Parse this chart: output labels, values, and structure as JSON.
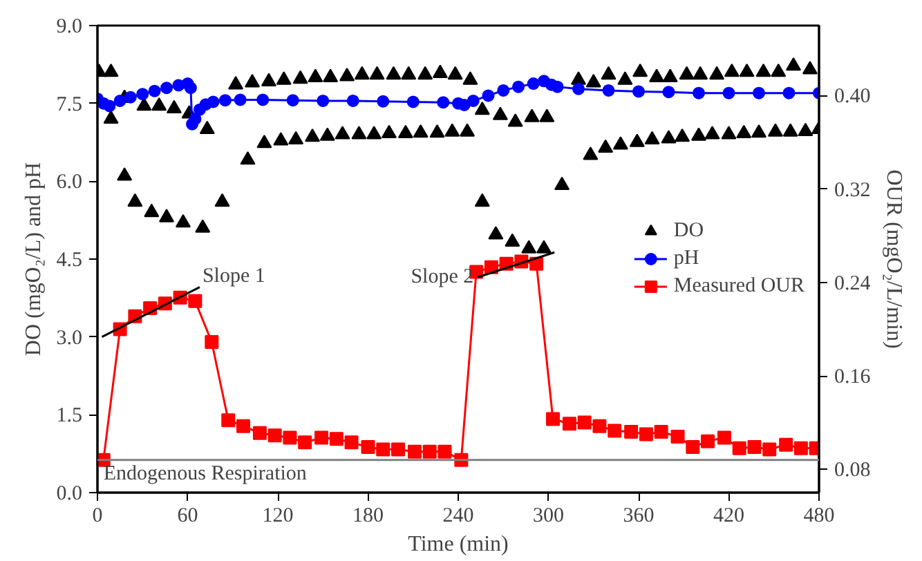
{
  "chart_data": {
    "type": "line",
    "xlabel": "Time (min)",
    "ylabel": "DO (mgO₂/L) and pH",
    "y2label": "OUR (mgO₂/L/min)",
    "xlim": [
      0,
      480
    ],
    "xticks": [
      0,
      60,
      120,
      180,
      240,
      300,
      360,
      420,
      480
    ],
    "ylim": [
      0,
      9
    ],
    "yticks": [
      {
        "value": 0,
        "label": "0.0"
      },
      {
        "value": 1.5,
        "label": "1.5"
      },
      {
        "value": 3,
        "label": "3.0"
      },
      {
        "value": 4.5,
        "label": "4.5"
      },
      {
        "value": 6,
        "label": "6.0"
      },
      {
        "value": 7.5,
        "label": "7.5"
      },
      {
        "value": 9,
        "label": "9.0"
      }
    ],
    "y2lim": [
      0.06,
      0.46
    ],
    "y2ticks": [
      0.08,
      0.16,
      0.24,
      0.32,
      {
        "value": 0.4,
        "label": "0.40"
      }
    ],
    "legend": "right",
    "grid": false,
    "series": [
      {
        "name": "DO",
        "type": "scatter",
        "marker": "triangle",
        "color": "#000000",
        "x": [
          1,
          9,
          9,
          18,
          18,
          25,
          31,
          36,
          41,
          46,
          51,
          57,
          61,
          70,
          73,
          83,
          92,
          100,
          103,
          111,
          114,
          122,
          124,
          132,
          135,
          143,
          145,
          153,
          155,
          163,
          166,
          174,
          176,
          184,
          186,
          194,
          197,
          205,
          207,
          215,
          218,
          226,
          228,
          236,
          238,
          246,
          248,
          256,
          256,
          265,
          268,
          276,
          278,
          287,
          289,
          297,
          299,
          309,
          320,
          328,
          330,
          338,
          340,
          348,
          351,
          359,
          361,
          369,
          372,
          380,
          381,
          389,
          392,
          400,
          401,
          409,
          412,
          420,
          422,
          430,
          432,
          440,
          443,
          451,
          453,
          461,
          463,
          471,
          474,
          480
        ],
        "values": [
          8.1,
          7.2,
          8.1,
          6.1,
          7.6,
          5.6,
          7.45,
          5.4,
          7.45,
          5.3,
          7.4,
          5.2,
          7.3,
          5.1,
          7.0,
          5.6,
          7.86,
          6.41,
          7.9,
          6.73,
          7.92,
          6.78,
          7.95,
          6.8,
          7.97,
          6.85,
          8.0,
          6.87,
          8.0,
          6.9,
          8.02,
          6.9,
          8.05,
          6.9,
          8.05,
          6.92,
          8.05,
          6.92,
          8.05,
          6.93,
          8.05,
          6.93,
          8.08,
          6.95,
          8.05,
          6.95,
          7.95,
          5.6,
          7.37,
          4.97,
          7.27,
          4.83,
          7.14,
          4.7,
          7.23,
          4.7,
          7.23,
          5.92,
          7.95,
          6.5,
          7.9,
          6.64,
          8.05,
          6.7,
          7.95,
          6.75,
          8.1,
          6.8,
          8.0,
          6.82,
          8.0,
          6.85,
          8.05,
          6.87,
          8.05,
          6.9,
          8.05,
          6.9,
          8.1,
          6.92,
          8.1,
          6.93,
          8.1,
          6.95,
          8.1,
          6.95,
          8.22,
          6.96,
          8.15,
          7.0
        ]
      },
      {
        "name": "pH",
        "marker": "circle",
        "color": "#0000ff",
        "x": [
          0,
          4,
          8,
          15,
          22,
          30,
          38,
          46,
          54,
          60,
          62,
          63,
          65,
          68,
          72,
          77,
          85,
          95,
          110,
          130,
          150,
          170,
          190,
          210,
          230,
          240,
          244,
          250,
          260,
          270,
          280,
          290,
          297,
          302,
          306,
          320,
          340,
          360,
          380,
          400,
          420,
          440,
          460,
          480
        ],
        "values": [
          7.59,
          7.5,
          7.45,
          7.55,
          7.62,
          7.68,
          7.74,
          7.8,
          7.85,
          7.88,
          7.8,
          7.1,
          7.2,
          7.38,
          7.48,
          7.53,
          7.56,
          7.57,
          7.57,
          7.56,
          7.55,
          7.55,
          7.54,
          7.53,
          7.52,
          7.5,
          7.47,
          7.55,
          7.65,
          7.75,
          7.82,
          7.88,
          7.93,
          7.86,
          7.82,
          7.78,
          7.75,
          7.73,
          7.72,
          7.7,
          7.7,
          7.7,
          7.7,
          7.7
        ]
      },
      {
        "name": "Measured OUR",
        "marker": "square",
        "color": "#ff0000",
        "axis": "y2",
        "x": [
          4,
          15,
          25,
          35,
          45,
          55,
          65,
          76,
          87,
          97,
          108,
          118,
          128,
          138,
          149,
          159,
          169,
          180,
          190,
          200,
          211,
          221,
          231,
          242,
          252,
          262,
          272,
          282,
          292,
          303,
          314,
          324,
          334,
          344,
          355,
          365,
          375,
          386,
          396,
          406,
          417,
          427,
          437,
          447,
          458,
          468,
          478
        ],
        "values": [
          0.088,
          0.2,
          0.211,
          0.218,
          0.222,
          0.227,
          0.224,
          0.189,
          0.122,
          0.117,
          0.111,
          0.109,
          0.107,
          0.103,
          0.107,
          0.106,
          0.103,
          0.099,
          0.097,
          0.097,
          0.095,
          0.095,
          0.095,
          0.088,
          0.249,
          0.253,
          0.256,
          0.258,
          0.256,
          0.123,
          0.119,
          0.12,
          0.117,
          0.113,
          0.112,
          0.11,
          0.112,
          0.108,
          0.099,
          0.104,
          0.107,
          0.098,
          0.099,
          0.097,
          0.101,
          0.098,
          0.098
        ]
      },
      {
        "name": "Slope 1",
        "marker": "none",
        "color": "#000000",
        "x": [
          3,
          68
        ],
        "values": [
          3.0,
          3.96
        ]
      },
      {
        "name": "Slope 2",
        "marker": "none",
        "color": "#000000",
        "x": [
          253,
          304
        ],
        "values": [
          4.15,
          4.63
        ]
      }
    ],
    "ref_lines": [
      {
        "axis": "y2",
        "value": 0.088,
        "label": "Endogenous Respiration",
        "color": "#808080"
      }
    ]
  }
}
